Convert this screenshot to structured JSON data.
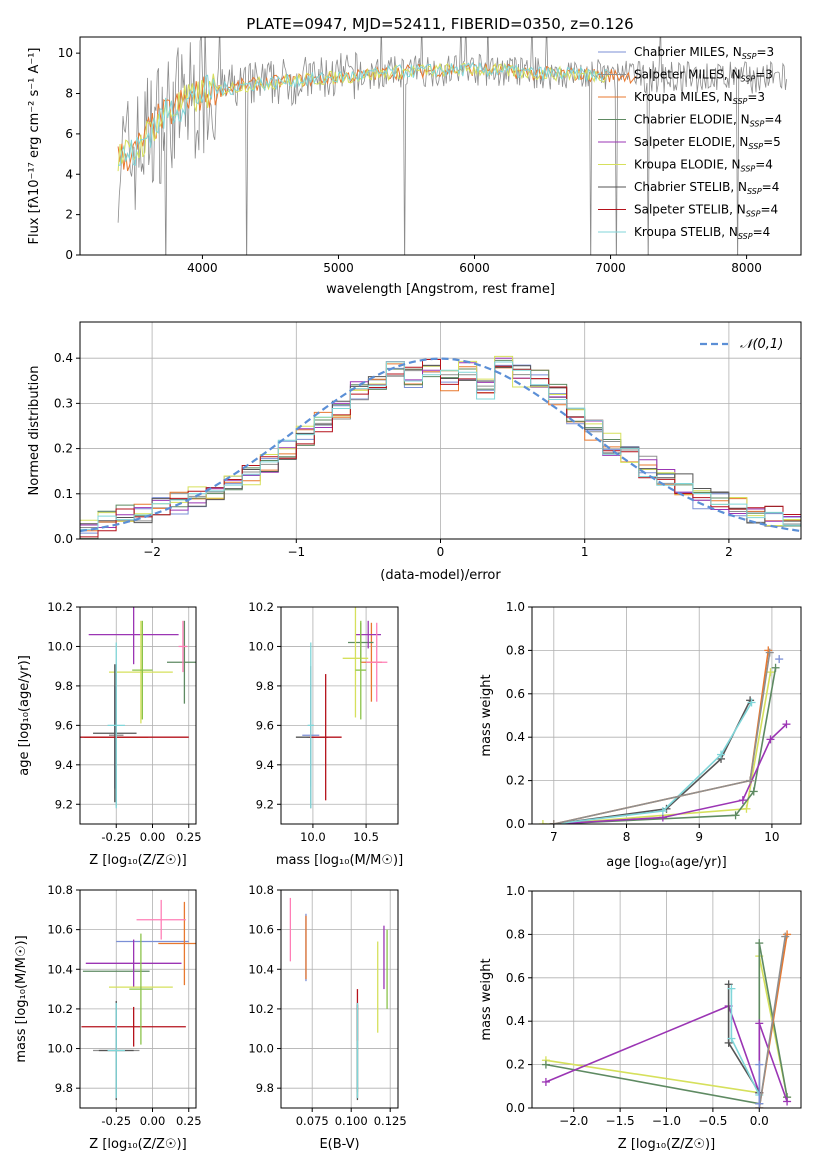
{
  "figure": {
    "title": "PLATE=0947, MJD=52411, FIBERID=0350, z=0.126"
  },
  "colors": {
    "Chabrier MILES": "#7b8fd6",
    "Salpeter MILES": "#8f8f8f",
    "Kroupa MILES": "#e8782f",
    "Chabrier ELODIE": "#5e8a62",
    "Salpeter ELODIE": "#9b35b4",
    "Kroupa ELODIE": "#d6e05c",
    "Chabrier STELIB": "#555555",
    "Salpeter STELIB": "#b5121b",
    "Kroupa STELIB": "#80d6d9",
    "extra1": "#ff7eb6",
    "extra2": "#8bc34a",
    "normal": "#5b8fd6"
  },
  "chart_data": [
    {
      "id": "spectrum",
      "type": "line",
      "title": "PLATE=0947, MJD=52411, FIBERID=0350, z=0.126",
      "xlabel": "wavelength [Angstrom, rest frame]",
      "ylabel": "Flux [fλ10⁻¹⁷ erg cm⁻² s⁻¹ A⁻¹]",
      "xlim": [
        3100,
        8400
      ],
      "ylim": [
        0,
        10.8
      ],
      "xticks": [
        4000,
        5000,
        6000,
        7000,
        8000
      ],
      "yticks": [
        0,
        2,
        4,
        6,
        8,
        10
      ],
      "grid": false,
      "legend_position": "top-right",
      "legend": [
        "Chabrier MILES, N_SSP=3",
        "Salpeter MILES, N_SSP=3",
        "Kroupa MILES, N_SSP=3",
        "Chabrier ELODIE, N_SSP=4",
        "Salpeter ELODIE, N_SSP=5",
        "Kroupa ELODIE, N_SSP=4",
        "Chabrier STELIB, N_SSP=4",
        "Salpeter STELIB, N_SSP=4",
        "Kroupa STELIB, N_SSP=4"
      ],
      "continuum": {
        "x": [
          3380,
          3500,
          3650,
          3800,
          4000,
          4300,
          4600,
          5000,
          5500,
          6000,
          6500,
          7000,
          7400
        ],
        "y": [
          4.8,
          5.0,
          6.5,
          7.3,
          8.0,
          8.4,
          8.6,
          8.8,
          9.1,
          9.2,
          9.0,
          8.9,
          8.8
        ]
      }
    },
    {
      "id": "residuals",
      "type": "line",
      "xlabel": "(data-model)/error",
      "ylabel": "Normed distribution",
      "xlim": [
        -2.5,
        2.5
      ],
      "ylim": [
        0,
        0.48
      ],
      "xticks": [
        -2,
        -1,
        0,
        1,
        2
      ],
      "yticks": [
        0.0,
        0.1,
        0.2,
        0.3,
        0.4
      ],
      "grid": true,
      "legend_position": "top-right",
      "legend": [
        "𝒩(0,1)"
      ],
      "histogram_values": [
        0.025,
        0.04,
        0.05,
        0.06,
        0.07,
        0.08,
        0.095,
        0.11,
        0.13,
        0.145,
        0.17,
        0.2,
        0.23,
        0.26,
        0.29,
        0.33,
        0.35,
        0.37,
        0.36,
        0.38,
        0.35,
        0.37,
        0.33,
        0.39,
        0.36,
        0.36,
        0.32,
        0.27,
        0.24,
        0.21,
        0.19,
        0.16,
        0.13,
        0.12,
        0.09,
        0.08,
        0.07,
        0.06,
        0.05,
        0.045
      ]
    },
    {
      "id": "age-vs-z",
      "type": "scatter",
      "xlabel": "Z [log₁₀(Z/Z☉)]",
      "ylabel": "age  [log₁₀(age/yr)]",
      "xlim": [
        -0.5,
        0.3
      ],
      "ylim": [
        9.1,
        10.2
      ],
      "xticks": [
        "-0.25",
        "0.00",
        "0.25"
      ],
      "yticks": [
        "9.2",
        "9.4",
        "9.6",
        "9.8",
        "10.0",
        "10.2"
      ]
    },
    {
      "id": "age-vs-mass",
      "type": "scatter",
      "xlabel": "mass [log₁₀(M/M☉)]",
      "xlim": [
        9.7,
        10.8
      ],
      "ylim": [
        9.1,
        10.2
      ],
      "xticks": [
        "10.0",
        "10.5"
      ],
      "yticks": [
        "9.2",
        "9.4",
        "9.6",
        "9.8",
        "10.0",
        "10.2"
      ]
    },
    {
      "id": "weight-vs-age",
      "type": "line",
      "xlabel": "age  [log₁₀(age/yr)]",
      "ylabel": "mass weight",
      "xlim": [
        6.7,
        10.4
      ],
      "ylim": [
        0,
        1
      ],
      "xticks": [
        "7",
        "8",
        "9",
        "10"
      ],
      "yticks": [
        "0.0",
        "0.2",
        "0.4",
        "0.6",
        "0.8",
        "1.0"
      ],
      "grid": true
    },
    {
      "id": "mass-vs-z",
      "type": "scatter",
      "xlabel": "Z [log₁₀(Z/Z☉)]",
      "ylabel": "mass [log₁₀(M/M☉)]",
      "xlim": [
        -0.5,
        0.3
      ],
      "ylim": [
        9.7,
        10.8
      ],
      "xticks": [
        "-0.25",
        "0.00",
        "0.25"
      ],
      "yticks": [
        "9.8",
        "10.0",
        "10.2",
        "10.4",
        "10.6",
        "10.8"
      ]
    },
    {
      "id": "mass-vs-ebv",
      "type": "scatter",
      "xlabel": "E(B-V)",
      "xlim": [
        0.055,
        0.13
      ],
      "ylim": [
        9.7,
        10.8
      ],
      "xticks": [
        "0.075",
        "0.100",
        "0.125"
      ],
      "yticks": [
        "9.8",
        "10.0",
        "10.2",
        "10.4",
        "10.6",
        "10.8"
      ]
    },
    {
      "id": "weight-vs-z",
      "type": "line",
      "xlabel": "Z [log₁₀(Z/Z☉)]",
      "ylabel": "mass weight",
      "xlim": [
        -2.45,
        0.45
      ],
      "ylim": [
        0,
        1
      ],
      "xticks": [
        "−2.0",
        "−1.5",
        "−1.0",
        "−0.5",
        "0.0"
      ],
      "yticks": [
        "0.0",
        "0.2",
        "0.4",
        "0.6",
        "0.8",
        "1.0"
      ],
      "grid": true
    }
  ]
}
